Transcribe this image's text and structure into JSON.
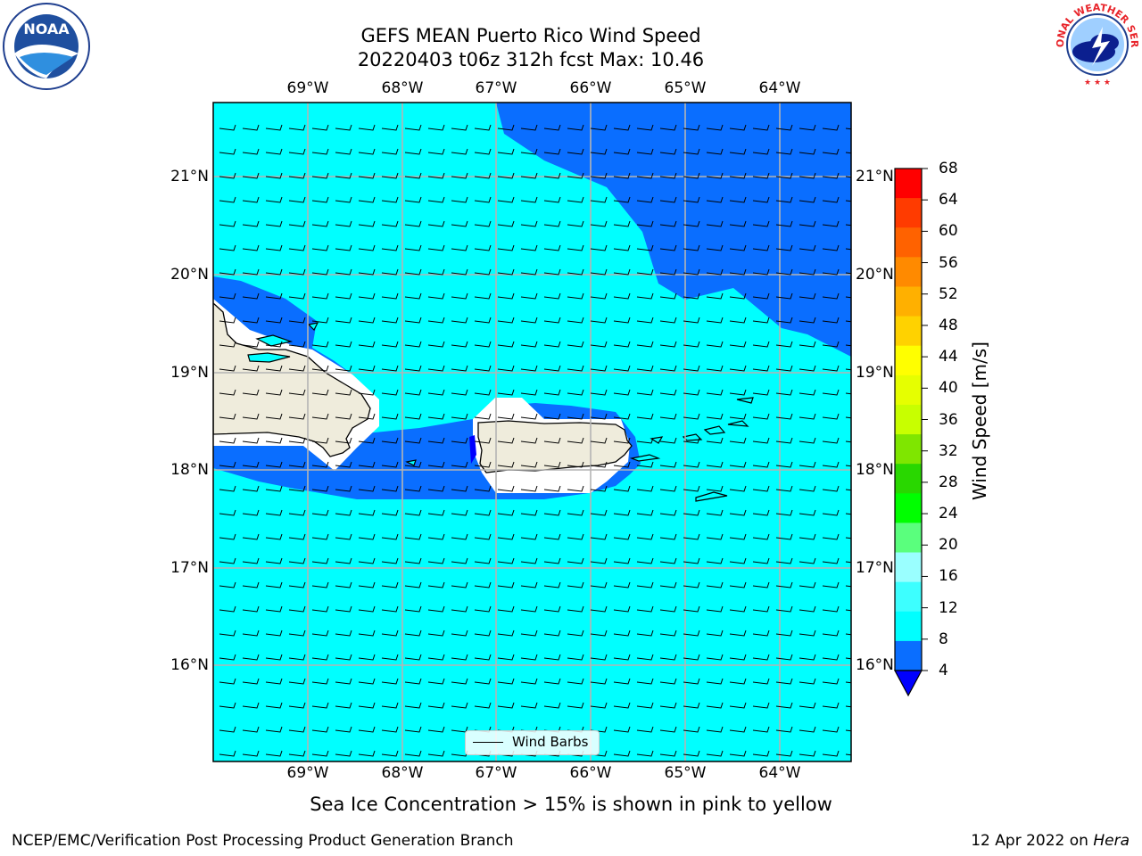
{
  "title": {
    "line1": "GEFS MEAN Puerto Rico Wind Speed",
    "line2": "20220403 t06z 312h fcst   Max: 10.46"
  },
  "longitude_labels": [
    "69°W",
    "68°W",
    "67°W",
    "66°W",
    "65°W",
    "64°W"
  ],
  "latitude_labels": [
    "21°N",
    "20°N",
    "19°N",
    "18°N",
    "17°N",
    "16°N"
  ],
  "legend": {
    "label": "Wind Barbs"
  },
  "colorbar": {
    "label": "Wind Speed [m/s]",
    "ticks": [
      "68",
      "64",
      "60",
      "56",
      "52",
      "48",
      "44",
      "40",
      "36",
      "32",
      "28",
      "24",
      "20",
      "16",
      "12",
      "8",
      "4"
    ],
    "colors": [
      "#0000ff",
      "#0a6eff",
      "#00ffff",
      "#3dffff",
      "#9affff",
      "#5aff7d",
      "#00ff00",
      "#29d700",
      "#7fe600",
      "#c8ff00",
      "#e6ff00",
      "#ffff00",
      "#ffd200",
      "#ffb000",
      "#ff8a00",
      "#ff6200",
      "#ff3b00",
      "#ff0000"
    ]
  },
  "logos": {
    "left": "NOAA",
    "right": "NATIONAL WEATHER SERVICE"
  },
  "footer": {
    "note": "Sea Ice Concentration > 15% is shown in pink to yellow",
    "credit": "NCEP/EMC/Verification Post Processing Product Generation Branch",
    "date": "12 Apr 2022 on",
    "date_system": "Hera"
  },
  "palette": {
    "field_light": "#00ffff",
    "field_dark": "#0a6eff",
    "land": "#efecdc",
    "grid": "#b4b4b4"
  }
}
